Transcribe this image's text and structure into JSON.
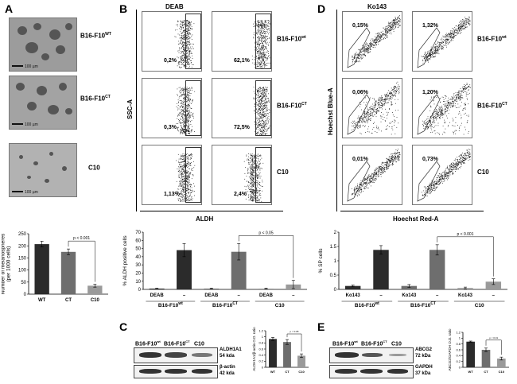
{
  "panel_labels": {
    "a": "A",
    "b": "B",
    "c": "C",
    "d": "D",
    "e": "E"
  },
  "panel_a": {
    "rows": [
      {
        "base": "B16-F10",
        "sup": "WT",
        "scale": "100 µm"
      },
      {
        "base": "B16-F10",
        "sup": "CT",
        "scale": "100 µm"
      },
      {
        "base": "C10",
        "sup": "",
        "scale": "100 µm"
      }
    ]
  },
  "panel_b": {
    "title": "DEAB",
    "ylabel": "SSC-A",
    "xlabel": "ALDH",
    "rows": [
      {
        "base": "B16-F10",
        "sup": "wt",
        "left_pct": "0,2%",
        "right_pct": "62,1%"
      },
      {
        "base": "B16-F10",
        "sup": "CT",
        "left_pct": "0,3%",
        "right_pct": "72,5%"
      },
      {
        "base": "C10",
        "sup": "",
        "left_pct": "1,13%",
        "right_pct": "2,4%"
      }
    ]
  },
  "panel_d": {
    "title": "Ko143",
    "ylabel": "Hoechst Blue-A",
    "xlabel": "Hoechst Red-A",
    "rows": [
      {
        "base": "B16-F10",
        "sup": "wt",
        "left_pct": "0,15%",
        "right_pct": "1,32%"
      },
      {
        "base": "B16-F10",
        "sup": "CT",
        "left_pct": "0,06%",
        "right_pct": "1,20%"
      },
      {
        "base": "C10",
        "sup": "",
        "left_pct": "0,01%",
        "right_pct": "0,73%"
      }
    ]
  },
  "panel_c": {
    "labels": [
      {
        "base": "B16-F10",
        "sup": "wt"
      },
      {
        "base": "B16-F10",
        "sup": "CT"
      },
      {
        "base": "C10",
        "sup": ""
      }
    ],
    "target": {
      "name": "ALDH1A1",
      "kda": "54 kda"
    },
    "loading": {
      "name": "β-actin",
      "kda": "42 kda"
    }
  },
  "panel_e": {
    "labels": [
      {
        "base": "B16-F10",
        "sup": "wt"
      },
      {
        "base": "B16-F10",
        "sup": "CT"
      },
      {
        "base": "C10",
        "sup": ""
      }
    ],
    "target": {
      "name": "ABCG2",
      "kda": "72 kDa"
    },
    "loading": {
      "name": "GAPDH",
      "kda": "37 kDa"
    }
  },
  "chart_data": [
    {
      "id": "a-bar",
      "type": "bar",
      "categories": [
        "WT",
        "CT",
        "C10"
      ],
      "values": [
        207,
        175,
        35
      ],
      "errors": [
        12,
        12,
        6
      ],
      "ylabel": "Number of melanospheres (per 1000 cells)",
      "ylim": [
        0,
        250
      ],
      "yticks": [
        0,
        50,
        100,
        150,
        200,
        250
      ],
      "bar_colors": [
        "#2b2b2b",
        "#6e6e6e",
        "#9a9a9a"
      ],
      "annotation": "p < 0.001",
      "bracket": [
        1,
        2
      ]
    },
    {
      "id": "b-bar",
      "type": "bar",
      "categories": [
        "DEAB",
        "–",
        "DEAB",
        "–",
        "DEAB",
        "–"
      ],
      "group_labels": [
        {
          "base": "B16-F10",
          "sup": "wt"
        },
        {
          "base": "B16-F10",
          "sup": "CT"
        },
        {
          "base": "C10",
          "sup": ""
        }
      ],
      "values": [
        1,
        48,
        1,
        46,
        1,
        6
      ],
      "errors": [
        0.5,
        8,
        0.5,
        10,
        0.5,
        5
      ],
      "ylabel": "% ALDH positive cells",
      "ylim": [
        0,
        70
      ],
      "yticks": [
        0,
        10,
        20,
        30,
        40,
        50,
        60,
        70
      ],
      "bar_colors": [
        "#2b2b2b",
        "#2b2b2b",
        "#6e6e6e",
        "#6e6e6e",
        "#9a9a9a",
        "#9a9a9a"
      ],
      "annotation": "p < 0.05",
      "bracket": [
        3,
        5
      ]
    },
    {
      "id": "d-bar",
      "type": "bar",
      "categories": [
        "Ko143",
        "–",
        "Ko143",
        "–",
        "Ko143",
        "–"
      ],
      "group_labels": [
        {
          "base": "B16-F10",
          "sup": "wt"
        },
        {
          "base": "B16-F10",
          "sup": "CT"
        },
        {
          "base": "C10",
          "sup": ""
        }
      ],
      "values": [
        0.12,
        1.38,
        0.12,
        1.38,
        0.05,
        0.27
      ],
      "errors": [
        0.03,
        0.15,
        0.05,
        0.18,
        0.03,
        0.1
      ],
      "ylabel": "% SP cells",
      "ylim": [
        0,
        2
      ],
      "yticks": [
        0,
        0.5,
        1,
        1.5,
        2
      ],
      "bar_colors": [
        "#2b2b2b",
        "#2b2b2b",
        "#6e6e6e",
        "#6e6e6e",
        "#9a9a9a",
        "#9a9a9a"
      ],
      "annotation": "p < 0.001",
      "bracket": [
        3,
        5
      ]
    },
    {
      "id": "c-bar",
      "type": "bar",
      "categories": [
        "WT",
        "CT",
        "C10"
      ],
      "values": [
        0.93,
        0.83,
        0.38
      ],
      "errors": [
        0.05,
        0.08,
        0.06
      ],
      "ylabel": "ALDH1A1/β-actin O.D. ratio",
      "ylim": [
        0,
        1.2
      ],
      "yticks": [
        0,
        0.2,
        0.4,
        0.6,
        0.8,
        1,
        1.2
      ],
      "bar_colors": [
        "#2b2b2b",
        "#6e6e6e",
        "#9a9a9a"
      ],
      "annotation": "p < 0.05",
      "bracket": [
        1,
        2
      ]
    },
    {
      "id": "e-bar",
      "type": "bar",
      "categories": [
        "WT",
        "CT",
        "C10"
      ],
      "values": [
        0.88,
        0.6,
        0.3
      ],
      "errors": [
        0.02,
        0.06,
        0.05
      ],
      "ylabel": "ABCG2/GAPDH O.D. ratio",
      "ylim": [
        0,
        1.2
      ],
      "yticks": [
        0,
        0.2,
        0.4,
        0.6,
        0.8,
        1,
        1.2
      ],
      "bar_colors": [
        "#2b2b2b",
        "#6e6e6e",
        "#9a9a9a"
      ],
      "annotation": "p < 0.01",
      "bracket": [
        1,
        2
      ]
    }
  ]
}
